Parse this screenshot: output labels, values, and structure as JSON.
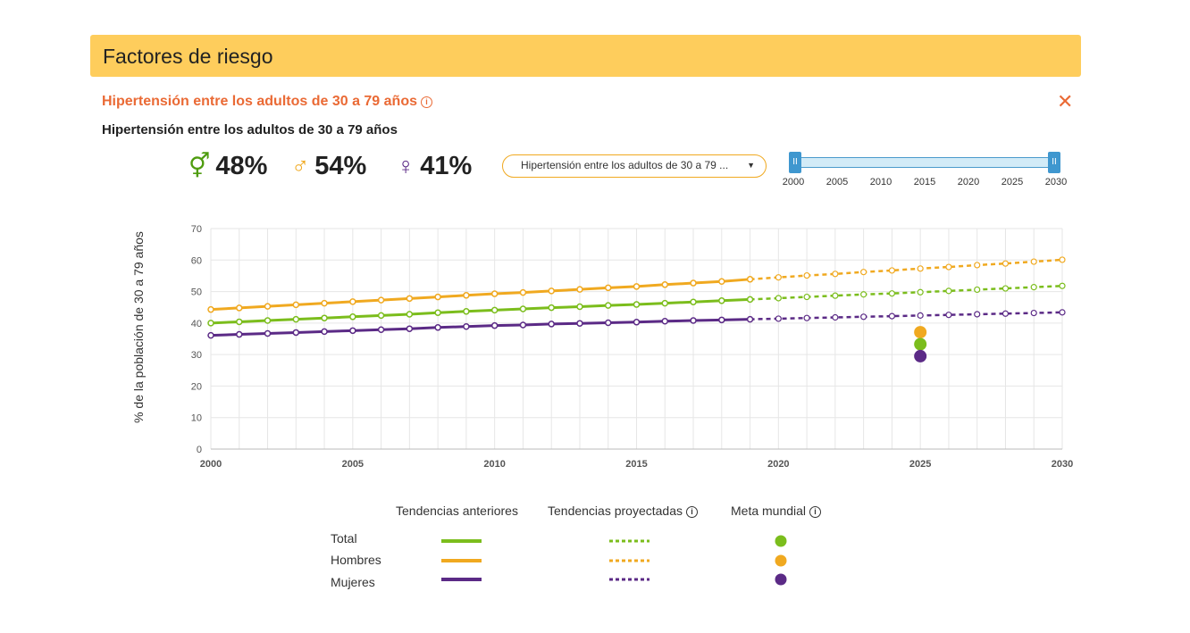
{
  "header": {
    "title": "Factores de riesgo"
  },
  "indicator": {
    "title": "Hipertensión entre los adultos de 30 a 79 años",
    "info_icon": "info-icon",
    "close_icon": "close-icon"
  },
  "chart_heading": "Hipertensión entre los adultos de 30 a 79 años",
  "stats": [
    {
      "symbol": "⚥",
      "icon": "both-sexes-icon",
      "value": "48%",
      "color": "#4e9c0f"
    },
    {
      "symbol": "♂",
      "icon": "male-icon",
      "value": "54%",
      "color": "#f0a920"
    },
    {
      "symbol": "♀",
      "icon": "female-icon",
      "value": "41%",
      "color": "#5b2a86"
    }
  ],
  "selector": {
    "selected": "Hipertensión entre los adultos de 30 a 79 ..."
  },
  "range_slider": {
    "ticks": [
      "2000",
      "2005",
      "2010",
      "2015",
      "2020",
      "2025",
      "2030"
    ],
    "min": 2000,
    "max": 2030,
    "selected": [
      2000,
      2030
    ]
  },
  "legend": {
    "headers": [
      "Tendencias anteriores",
      "Tendencias proyectadas",
      "Meta mundial"
    ],
    "rows": [
      "Total",
      "Hombres",
      "Mujeres"
    ]
  },
  "colors": {
    "total": "#7bbd1c",
    "hombres": "#f0a920",
    "mujeres": "#5b2a86",
    "accent": "#ea6a35",
    "header": "#fecd5c"
  },
  "chart_data": {
    "type": "line",
    "ylabel": "% de la población de 30 a 79 años",
    "xlabel": "",
    "xlim": [
      2000,
      2030
    ],
    "ylim": [
      0,
      70
    ],
    "yticks": [
      0,
      10,
      20,
      30,
      40,
      50,
      60,
      70
    ],
    "xticks": [
      2000,
      2005,
      2010,
      2015,
      2020,
      2025,
      2030
    ],
    "grid": true,
    "historical_years": [
      2000,
      2001,
      2002,
      2003,
      2004,
      2005,
      2006,
      2007,
      2008,
      2009,
      2010,
      2011,
      2012,
      2013,
      2014,
      2015,
      2016,
      2017,
      2018,
      2019
    ],
    "projected_years": [
      2019,
      2020,
      2021,
      2022,
      2023,
      2024,
      2025,
      2026,
      2027,
      2028,
      2029,
      2030
    ],
    "series": [
      {
        "name": "Total",
        "historical": [
          40.0,
          40.4,
          40.8,
          41.2,
          41.6,
          42.0,
          42.4,
          42.8,
          43.3,
          43.7,
          44.1,
          44.5,
          44.9,
          45.2,
          45.6,
          45.9,
          46.3,
          46.7,
          47.1,
          47.5
        ],
        "projected": [
          47.5,
          47.9,
          48.3,
          48.7,
          49.1,
          49.4,
          49.8,
          50.2,
          50.6,
          51.0,
          51.4,
          51.8
        ],
        "target": {
          "year": 2025,
          "value": 33.3
        }
      },
      {
        "name": "Hombres",
        "historical": [
          44.3,
          44.8,
          45.3,
          45.8,
          46.3,
          46.8,
          47.3,
          47.8,
          48.3,
          48.8,
          49.3,
          49.7,
          50.2,
          50.7,
          51.2,
          51.6,
          52.2,
          52.7,
          53.2,
          53.9
        ],
        "projected": [
          53.9,
          54.5,
          55.1,
          55.6,
          56.2,
          56.7,
          57.3,
          57.8,
          58.4,
          58.9,
          59.5,
          60.1
        ],
        "target": {
          "year": 2025,
          "value": 37.1
        }
      },
      {
        "name": "Mujeres",
        "historical": [
          36.1,
          36.4,
          36.7,
          37.0,
          37.3,
          37.6,
          37.9,
          38.2,
          38.6,
          38.9,
          39.2,
          39.4,
          39.7,
          39.9,
          40.1,
          40.3,
          40.6,
          40.8,
          41.0,
          41.2
        ],
        "projected": [
          41.2,
          41.4,
          41.6,
          41.8,
          42.0,
          42.2,
          42.4,
          42.6,
          42.8,
          43.0,
          43.2,
          43.4
        ],
        "target": {
          "year": 2025,
          "value": 29.5
        }
      }
    ]
  }
}
